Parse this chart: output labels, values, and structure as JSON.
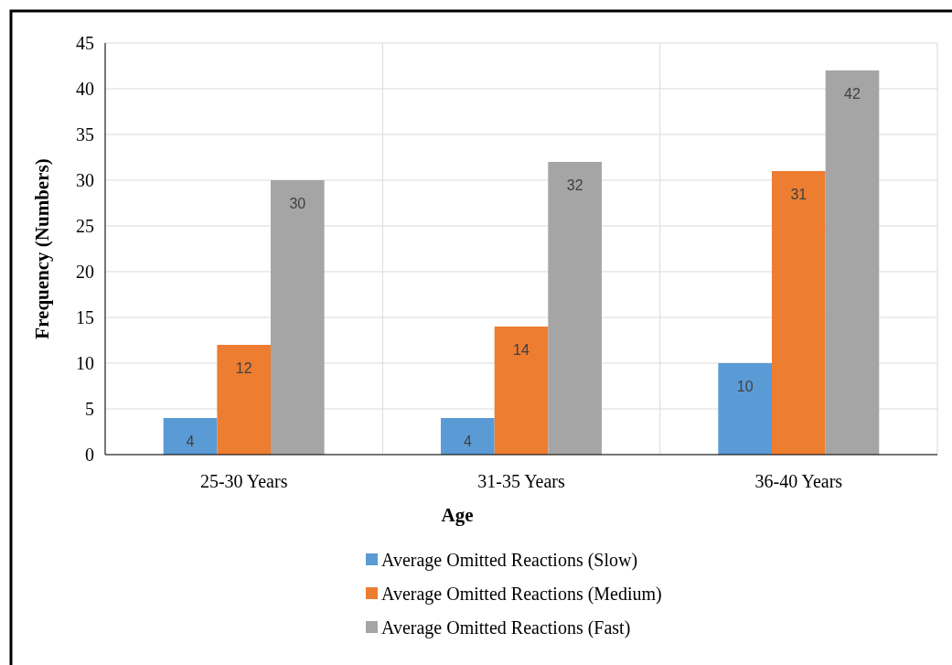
{
  "chart_data": {
    "type": "bar",
    "xlabel": "Age",
    "ylabel": "Frequency (Numbers)",
    "categories": [
      "25-30 Years",
      "31-35 Years",
      "36-40 Years"
    ],
    "series": [
      {
        "name": "Average Omitted Reactions (Slow)",
        "color": "#5b9bd5",
        "values": [
          4,
          4,
          10
        ]
      },
      {
        "name": "Average Omitted Reactions (Medium)",
        "color": "#ed7d31",
        "values": [
          12,
          14,
          31
        ]
      },
      {
        "name": "Average Omitted Reactions (Fast)",
        "color": "#a5a5a5",
        "values": [
          30,
          32,
          42
        ]
      }
    ],
    "ylim": [
      0,
      45
    ],
    "yticks": [
      0,
      5,
      10,
      15,
      20,
      25,
      30,
      35,
      40,
      45
    ],
    "grid": true,
    "data_labels": true,
    "legend": "bottom"
  }
}
